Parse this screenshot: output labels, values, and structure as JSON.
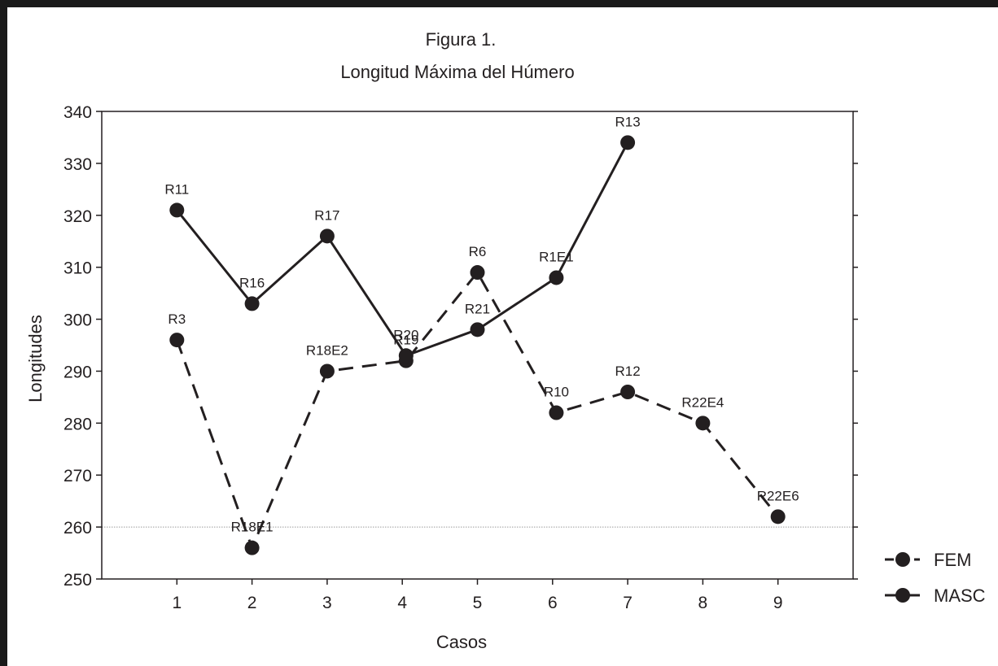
{
  "chart_data": {
    "type": "line",
    "title": "Figura 1.",
    "subtitle": "Longitud Máxima del Húmero",
    "xlabel": "Casos",
    "ylabel": "Longitudes",
    "x_ticks": [
      "1",
      "2",
      "3",
      "4",
      "5",
      "6",
      "7",
      "8",
      "9"
    ],
    "xlim": [
      0,
      10
    ],
    "ylim": [
      250,
      340
    ],
    "y_ticks": [
      250,
      260,
      270,
      280,
      290,
      300,
      310,
      320,
      330,
      340
    ],
    "reference_line": 260,
    "legend_position": "bottom-right",
    "series": [
      {
        "name": "FEM",
        "style": "dashed",
        "color": "#231f20",
        "points": [
          {
            "x": 1,
            "y": 296,
            "label": "R3"
          },
          {
            "x": 2,
            "y": 256,
            "label": "R18E1"
          },
          {
            "x": 3,
            "y": 290,
            "label": "R18E2"
          },
          {
            "x": 4.05,
            "y": 292,
            "label": "R19"
          },
          {
            "x": 5,
            "y": 309,
            "label": "R6"
          },
          {
            "x": 6.05,
            "y": 282,
            "label": "R10"
          },
          {
            "x": 7,
            "y": 286,
            "label": "R12"
          },
          {
            "x": 8,
            "y": 280,
            "label": "R22E4"
          },
          {
            "x": 9,
            "y": 262,
            "label": "R22E6"
          }
        ]
      },
      {
        "name": "MASC",
        "style": "solid",
        "color": "#231f20",
        "points": [
          {
            "x": 1,
            "y": 321,
            "label": "R11"
          },
          {
            "x": 2,
            "y": 303,
            "label": "R16"
          },
          {
            "x": 3,
            "y": 316,
            "label": "R17"
          },
          {
            "x": 4.05,
            "y": 293,
            "label": "R20"
          },
          {
            "x": 5,
            "y": 298,
            "label": "R21"
          },
          {
            "x": 6.05,
            "y": 308,
            "label": "R1E1"
          },
          {
            "x": 7,
            "y": 334,
            "label": "R13"
          }
        ]
      }
    ]
  }
}
